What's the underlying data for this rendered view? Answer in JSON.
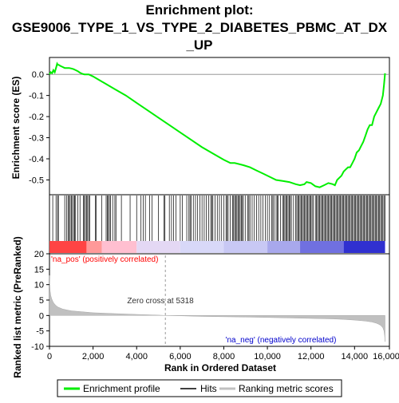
{
  "chart_data": [
    {
      "type": "line",
      "title_lines": [
        "Enrichment plot:",
        "GSE9006_TYPE_1_VS_TYPE_2_DIABETES_PBMC_AT_DX",
        "_UP"
      ],
      "ylabel": "Enrichment score (ES)",
      "xlim": [
        0,
        15600
      ],
      "ylim": [
        -0.57,
        0.08
      ],
      "yticks": [
        0.0,
        -0.1,
        -0.2,
        -0.3,
        -0.4,
        -0.5
      ],
      "ytick_labels": [
        "0.0",
        "-0.1",
        "-0.2",
        "-0.3",
        "-0.4",
        "-0.5"
      ],
      "grid": false,
      "series": [
        {
          "name": "Enrichment profile",
          "color": "#00ee00",
          "x": [
            0,
            60,
            120,
            180,
            240,
            300,
            350,
            380,
            420,
            500,
            600,
            700,
            800,
            900,
            1000,
            1100,
            1200,
            1300,
            1400,
            1500,
            1600,
            1700,
            1800,
            2000,
            2500,
            3000,
            3500,
            4000,
            4500,
            5000,
            5500,
            6000,
            6500,
            7000,
            7500,
            8000,
            8300,
            8500,
            8700,
            8900,
            9200,
            9500,
            9800,
            10100,
            10400,
            10700,
            11000,
            11300,
            11500,
            11700,
            11800,
            12000,
            12200,
            12400,
            12600,
            12800,
            13000,
            13100,
            13200,
            13300,
            13400,
            13500,
            13600,
            13700,
            13800,
            13900,
            14000,
            14100,
            14200,
            14300,
            14400,
            14500,
            14600,
            14700,
            14800,
            14900,
            15000,
            15100,
            15200,
            15300,
            15350,
            15400
          ],
          "values": [
            0.0,
            0.01,
            0.005,
            0.02,
            0.01,
            0.03,
            0.05,
            0.045,
            0.045,
            0.04,
            0.035,
            0.03,
            0.03,
            0.03,
            0.028,
            0.025,
            0.02,
            0.015,
            0.008,
            0.003,
            0.0,
            0.0,
            0.0,
            -0.01,
            -0.04,
            -0.07,
            -0.1,
            -0.135,
            -0.17,
            -0.205,
            -0.24,
            -0.275,
            -0.31,
            -0.345,
            -0.375,
            -0.405,
            -0.42,
            -0.42,
            -0.425,
            -0.43,
            -0.44,
            -0.455,
            -0.47,
            -0.485,
            -0.5,
            -0.505,
            -0.51,
            -0.52,
            -0.525,
            -0.52,
            -0.51,
            -0.515,
            -0.53,
            -0.535,
            -0.525,
            -0.515,
            -0.52,
            -0.525,
            -0.5,
            -0.49,
            -0.48,
            -0.46,
            -0.45,
            -0.44,
            -0.44,
            -0.42,
            -0.4,
            -0.37,
            -0.36,
            -0.34,
            -0.32,
            -0.29,
            -0.26,
            -0.24,
            -0.24,
            -0.2,
            -0.18,
            -0.16,
            -0.14,
            -0.1,
            -0.05,
            0.005
          ]
        }
      ]
    },
    {
      "type": "heatmap",
      "legend": [
        "Hits"
      ],
      "xlim": [
        0,
        15600
      ],
      "segments": [
        [
          0,
          1700,
          "#ff4444"
        ],
        [
          1700,
          2400,
          "#ff9999"
        ],
        [
          2400,
          4000,
          "#ffbfd0"
        ],
        [
          4000,
          6000,
          "#e4d8f4"
        ],
        [
          6000,
          8000,
          "#d8d8f8"
        ],
        [
          8000,
          10000,
          "#c8c8f4"
        ],
        [
          10000,
          11500,
          "#a8a8ec"
        ],
        [
          11500,
          13500,
          "#7070e0"
        ],
        [
          13500,
          15400,
          "#3030d0"
        ]
      ],
      "hits": [
        150,
        300,
        370,
        410,
        700,
        780,
        850,
        900,
        950,
        1000,
        1050,
        1120,
        1150,
        1200,
        1300,
        1400,
        1550,
        1600,
        1650,
        1700,
        1750,
        1800,
        1850,
        2100,
        2150,
        2400,
        2600,
        2650,
        2700,
        2750,
        2800,
        2900,
        3000,
        3050,
        3300,
        3700,
        4000,
        4200,
        4300,
        4400,
        4600,
        4700,
        5000,
        5250,
        5300,
        5500,
        5600,
        5700,
        5800,
        6000,
        6100,
        6300,
        6400,
        6450,
        6500,
        6600,
        6700,
        6800,
        6900,
        7000,
        7100,
        7200,
        7300,
        7400,
        7450,
        7500,
        7600,
        7700,
        7800,
        7900,
        8000,
        8100,
        8150,
        8200,
        8300,
        8400,
        8450,
        8500,
        8550,
        8600,
        8650,
        8700,
        8750,
        8800,
        8850,
        8900,
        9000,
        9100,
        9150,
        9200,
        9300,
        9400,
        9500,
        9600,
        9700,
        9800,
        9900,
        10000,
        10100,
        10200,
        10250,
        10300,
        10400,
        10450,
        10500,
        10600,
        10700,
        10750,
        10800,
        10850,
        10900,
        10950,
        11000,
        11050,
        11100,
        11200,
        11300,
        11350,
        11400,
        11450,
        11500,
        11550,
        11600,
        11650,
        11700,
        11750,
        11800,
        11850,
        11900,
        11950,
        12000,
        12050,
        12100,
        12200,
        12250,
        12300,
        12350,
        12400,
        12450,
        12500,
        12550,
        12600,
        12650,
        12700,
        12750,
        12800,
        12850,
        12900,
        12950,
        13000,
        13050,
        13100,
        13150,
        13200,
        13250,
        13300,
        13350,
        13400,
        13450,
        13500,
        13550,
        13600,
        13650,
        13700,
        13750,
        13800,
        13850,
        13900,
        13950,
        14000,
        14050,
        14100,
        14150,
        14200,
        14250,
        14300,
        14350,
        14400,
        14450,
        14500,
        14550,
        14600,
        14650,
        14700,
        14750,
        14800,
        14850,
        14900,
        14950,
        15000,
        15050,
        15100,
        15150,
        15200,
        15250,
        15300,
        15350,
        15400
      ]
    },
    {
      "type": "area",
      "ylabel": "Ranked list metric (PreRanked)",
      "xlabel": "Rank in Ordered Dataset",
      "xlim": [
        0,
        15600
      ],
      "ylim": [
        -10,
        20
      ],
      "xticks": [
        0,
        2000,
        4000,
        6000,
        8000,
        10000,
        12000,
        14000,
        16000
      ],
      "xtick_labels": [
        "0",
        "2,000",
        "4,000",
        "6,000",
        "8,000",
        "10,000",
        "12,000",
        "14,000",
        "16,000"
      ],
      "yticks": [
        20,
        15,
        10,
        5,
        0,
        -5,
        -10
      ],
      "ytick_labels": [
        "20",
        "15",
        "10",
        "5",
        "0",
        "-5",
        "-10"
      ],
      "grid": false,
      "annotations": {
        "pos_label": "'na_pos' (positively correlated)",
        "neg_label": "'na_neg' (negatively correlated)",
        "zero_cross_label": "Zero cross at 5318",
        "zero_cross": 5318
      },
      "series": [
        {
          "name": "Ranking metric scores",
          "color": "#c0c0c0",
          "x": [
            0,
            10,
            30,
            60,
            100,
            150,
            200,
            300,
            400,
            600,
            800,
            1000,
            1500,
            2000,
            3000,
            4000,
            5000,
            5318,
            6000,
            7000,
            8000,
            9000,
            10000,
            11000,
            12000,
            13000,
            13500,
            14000,
            14500,
            14800,
            15000,
            15100,
            15200,
            15300,
            15350,
            15380,
            15400
          ],
          "values": [
            13,
            10,
            8,
            6.5,
            5.5,
            4.6,
            4.0,
            3.2,
            2.7,
            2.1,
            1.8,
            1.5,
            1.2,
            0.9,
            0.6,
            0.35,
            0.1,
            0.0,
            -0.1,
            -0.3,
            -0.4,
            -0.5,
            -0.65,
            -0.8,
            -0.95,
            -1.1,
            -1.25,
            -1.5,
            -1.8,
            -2.1,
            -2.5,
            -2.8,
            -3.2,
            -4.0,
            -5.0,
            -6.5,
            -8.5
          ]
        }
      ]
    }
  ],
  "legend": {
    "items": [
      "Enrichment profile",
      "Hits",
      "Ranking metric scores"
    ],
    "colors": {
      "Enrichment profile": "#00ee00",
      "Hits": "#000000",
      "Ranking metric scores": "#c0c0c0"
    }
  }
}
